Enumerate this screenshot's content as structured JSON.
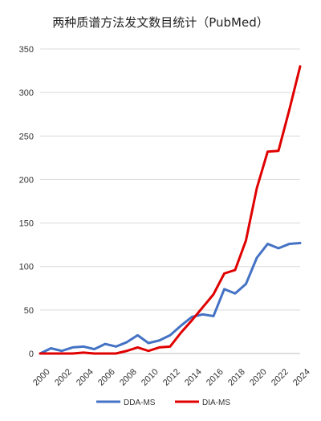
{
  "chart_data": {
    "type": "line",
    "title": "两种质谱方法发文数目统计（PubMed）",
    "xlabel": "",
    "ylabel": "",
    "x": [
      2000,
      2001,
      2002,
      2003,
      2004,
      2005,
      2006,
      2007,
      2008,
      2009,
      2010,
      2011,
      2012,
      2013,
      2014,
      2015,
      2016,
      2017,
      2018,
      2019,
      2020,
      2021,
      2022,
      2023,
      2024
    ],
    "x_tick_labels": [
      "2000",
      "2002",
      "2004",
      "2006",
      "2008",
      "2010",
      "2012",
      "2014",
      "2016",
      "2018",
      "2020",
      "2022",
      "2024"
    ],
    "y_tick_labels": [
      "0",
      "50",
      "100",
      "150",
      "200",
      "250",
      "300",
      "350"
    ],
    "ylim": [
      0,
      350
    ],
    "xlim": [
      2000,
      2024
    ],
    "grid": "horizontal",
    "legend_position": "bottom",
    "series": [
      {
        "name": "DDA-MS",
        "color": "#4472c4",
        "values": [
          0,
          6,
          3,
          7,
          8,
          5,
          11,
          8,
          13,
          21,
          12,
          15,
          21,
          32,
          42,
          45,
          43,
          74,
          69,
          80,
          110,
          126,
          121,
          126,
          127
        ]
      },
      {
        "name": "DIA-MS",
        "color": "#e00000",
        "values": [
          0,
          0,
          0,
          0,
          1,
          0,
          0,
          0,
          3,
          7,
          3,
          7,
          8,
          24,
          38,
          53,
          68,
          92,
          96,
          130,
          190,
          232,
          233,
          280,
          330
        ]
      }
    ]
  }
}
